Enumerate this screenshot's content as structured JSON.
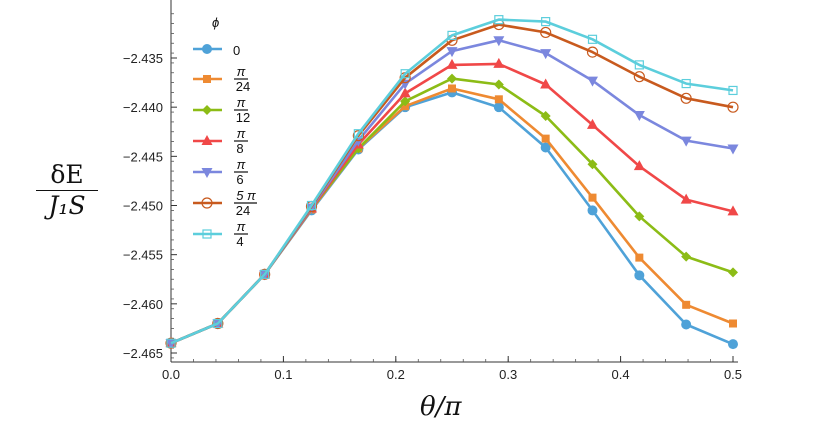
{
  "chart_data": {
    "type": "line",
    "title": "",
    "xlabel": "θ/π",
    "ylabel_numerator": "δE",
    "ylabel_denominator": "J₁S",
    "xlim": [
      0,
      0.5
    ],
    "ylim": [
      -2.4655,
      -2.4305
    ],
    "xticks": [
      "0.0",
      "0.1",
      "0.2",
      "0.3",
      "0.4",
      "0.5"
    ],
    "xtick_values": [
      0,
      0.1,
      0.2,
      0.3,
      0.4,
      0.5
    ],
    "yticks": [
      "-2.435",
      "-2.440",
      "-2.445",
      "-2.450",
      "-2.455",
      "-2.460",
      "-2.465"
    ],
    "ytick_values": [
      -2.435,
      -2.44,
      -2.445,
      -2.45,
      -2.455,
      -2.46,
      -2.465
    ],
    "grid": false,
    "legend_title": "ϕ",
    "legend_placement": "top-left",
    "x": [
      0,
      0.04167,
      0.08333,
      0.125,
      0.16667,
      0.20833,
      0.25,
      0.29167,
      0.33333,
      0.375,
      0.41667,
      0.45833,
      0.5
    ],
    "series": [
      {
        "name": "0",
        "label_num": "0",
        "label_den": "",
        "color": "#4fa2d8",
        "marker": "circle",
        "values": [
          -2.464,
          -2.462,
          -2.457,
          -2.4505,
          -2.4443,
          -2.44,
          -2.4385,
          -2.44,
          -2.4441,
          -2.4505,
          -2.4571,
          -2.4621,
          -2.4641
        ]
      },
      {
        "name": "π/24",
        "label_num": "π",
        "label_den": "24",
        "color": "#ee8a32",
        "marker": "square",
        "values": [
          -2.464,
          -2.462,
          -2.457,
          -2.4504,
          -2.4442,
          -2.4399,
          -2.4381,
          -2.4392,
          -2.4432,
          -2.4492,
          -2.4553,
          -2.4601,
          -2.462
        ]
      },
      {
        "name": "π/12",
        "label_num": "π",
        "label_den": "12",
        "color": "#8cbc16",
        "marker": "diamond",
        "values": [
          -2.464,
          -2.462,
          -2.457,
          -2.4503,
          -2.4442,
          -2.4394,
          -2.4371,
          -2.4377,
          -2.4409,
          -2.4458,
          -2.4511,
          -2.4552,
          -2.4568
        ]
      },
      {
        "name": "π/8",
        "label_num": "π",
        "label_den": "8",
        "color": "#f04848",
        "marker": "triangle-up",
        "values": [
          -2.464,
          -2.462,
          -2.457,
          -2.4503,
          -2.4438,
          -2.4386,
          -2.4357,
          -2.4356,
          -2.4377,
          -2.4418,
          -2.446,
          -2.4494,
          -2.4506
        ]
      },
      {
        "name": "π/6",
        "label_num": "π",
        "label_den": "6",
        "color": "#7b87de",
        "marker": "triangle-down",
        "values": [
          -2.464,
          -2.462,
          -2.457,
          -2.4502,
          -2.4434,
          -2.4376,
          -2.4343,
          -2.4332,
          -2.4345,
          -2.4373,
          -2.4408,
          -2.4434,
          -2.4442
        ]
      },
      {
        "name": "5π/24",
        "label_num": "5 π",
        "label_den": "24",
        "color": "#c85a1e",
        "marker": "open-circle",
        "values": [
          -2.464,
          -2.462,
          -2.457,
          -2.4501,
          -2.4429,
          -2.437,
          -2.4332,
          -2.4316,
          -2.4324,
          -2.4344,
          -2.4369,
          -2.4391,
          -2.44
        ]
      },
      {
        "name": "π/4",
        "label_num": "π",
        "label_den": "4",
        "color": "#5ccedc",
        "marker": "open-square",
        "values": [
          -2.464,
          -2.462,
          -2.457,
          -2.45,
          -2.4427,
          -2.4366,
          -2.4327,
          -2.4311,
          -2.4313,
          -2.4331,
          -2.4357,
          -2.4376,
          -2.4383
        ]
      }
    ]
  }
}
